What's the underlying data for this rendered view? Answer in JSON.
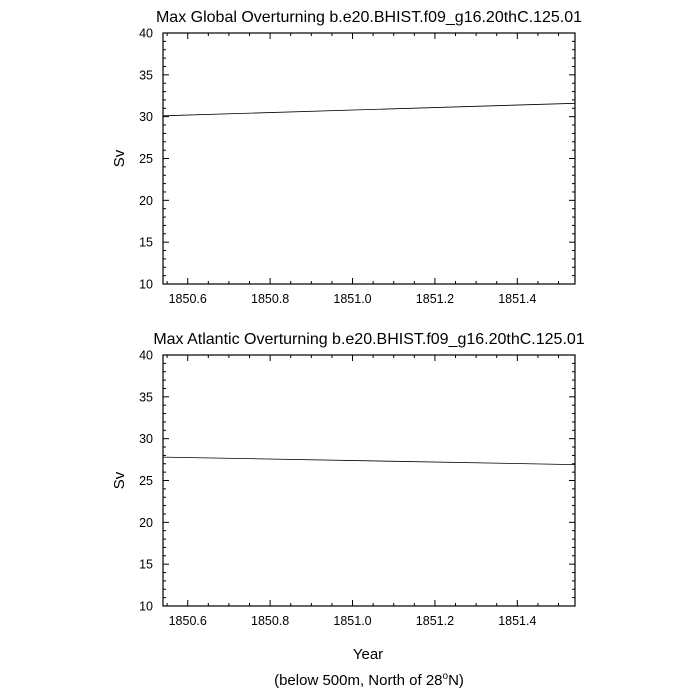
{
  "chart_data": [
    {
      "type": "line",
      "title": "Max Global Overturning b.e20.BHIST.f09_g16.20thC.125.01",
      "xlabel": "",
      "ylabel": "Sv",
      "xlim": [
        1850.54,
        1851.54
      ],
      "ylim": [
        10,
        40
      ],
      "xticks": [
        1850.6,
        1850.8,
        1851.0,
        1851.2,
        1851.4
      ],
      "xtick_labels": [
        "1850.6",
        "1850.8",
        "1851.0",
        "1851.2",
        "1851.4"
      ],
      "yticks": [
        10,
        15,
        20,
        25,
        30,
        35,
        40
      ],
      "ytick_labels": [
        "10",
        "15",
        "20",
        "25",
        "30",
        "35",
        "40"
      ],
      "grid": false,
      "series": [
        {
          "x": [
            1850.54,
            1851.54
          ],
          "y": [
            30.1,
            31.6
          ]
        }
      ]
    },
    {
      "type": "line",
      "title": "Max Atlantic Overturning b.e20.BHIST.f09_g16.20thC.125.01",
      "xlabel": "Year",
      "ylabel": "Sv",
      "xlim": [
        1850.54,
        1851.54
      ],
      "ylim": [
        10,
        40
      ],
      "xticks": [
        1850.6,
        1850.8,
        1851.0,
        1851.2,
        1851.4
      ],
      "xtick_labels": [
        "1850.6",
        "1850.8",
        "1851.0",
        "1851.2",
        "1851.4"
      ],
      "yticks": [
        10,
        15,
        20,
        25,
        30,
        35,
        40
      ],
      "ytick_labels": [
        "10",
        "15",
        "20",
        "25",
        "30",
        "35",
        "40"
      ],
      "grid": false,
      "series": [
        {
          "x": [
            1850.54,
            1851.54
          ],
          "y": [
            27.8,
            26.9
          ]
        }
      ]
    }
  ],
  "footer": {
    "prefix": "(below 500m, North of 28",
    "degree": "o",
    "suffix": "N)"
  },
  "colors": {
    "line": "#000000",
    "frame": "#000000",
    "background": "#ffffff"
  }
}
